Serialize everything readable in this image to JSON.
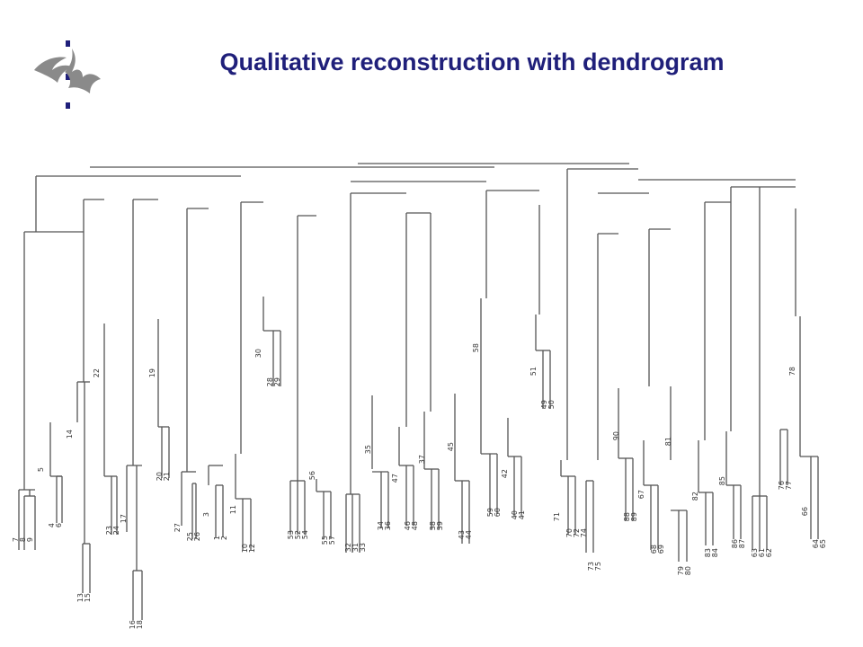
{
  "slide": {
    "title": "Qualitative reconstruction with dendrogram",
    "title_color": "#1f1f7a"
  },
  "logo": {
    "icon": "flame-emblem-icon",
    "color": "#8a8a8a",
    "dot_color": "#1f1f7a"
  },
  "dendrogram": {
    "line_color": "#555555",
    "leaf_labels": [
      [
        "7",
        "8 9"
      ],
      [
        "4 6"
      ],
      [
        "5"
      ],
      [
        "14"
      ],
      [
        "13 15"
      ],
      [
        "22"
      ],
      [
        "23 24"
      ],
      [
        "17"
      ],
      [
        "16 18"
      ],
      [
        "19"
      ],
      [
        "20 21"
      ],
      [
        "27"
      ],
      [
        "25 26"
      ],
      [
        "3"
      ],
      [
        "1 2"
      ],
      [
        "11"
      ],
      [
        "10 12"
      ],
      [
        "30"
      ],
      [
        "28 29"
      ],
      [
        "53 52 54"
      ],
      [
        "56"
      ],
      [
        "55 57"
      ],
      [
        "32 31 33"
      ],
      [
        "35"
      ],
      [
        "34 36"
      ],
      [
        "47"
      ],
      [
        "46 48"
      ],
      [
        "37"
      ],
      [
        "38 39"
      ],
      [
        "45"
      ],
      [
        "43 44"
      ],
      [
        "58"
      ],
      [
        "59 60"
      ],
      [
        "42"
      ],
      [
        "40 41"
      ],
      [
        "51"
      ],
      [
        "49 50"
      ],
      [
        "71"
      ],
      [
        "70 72 74"
      ],
      [
        "73 75"
      ],
      [
        "90"
      ],
      [
        "88 89"
      ],
      [
        "67"
      ],
      [
        "68 69"
      ],
      [
        "81"
      ],
      [
        "79 80"
      ],
      [
        "82"
      ],
      [
        "83 84"
      ],
      [
        "85"
      ],
      [
        "86 87"
      ],
      [
        "63 61 62"
      ],
      [
        "78"
      ],
      [
        "76 77"
      ],
      [
        "66"
      ],
      [
        "64 65"
      ]
    ]
  }
}
